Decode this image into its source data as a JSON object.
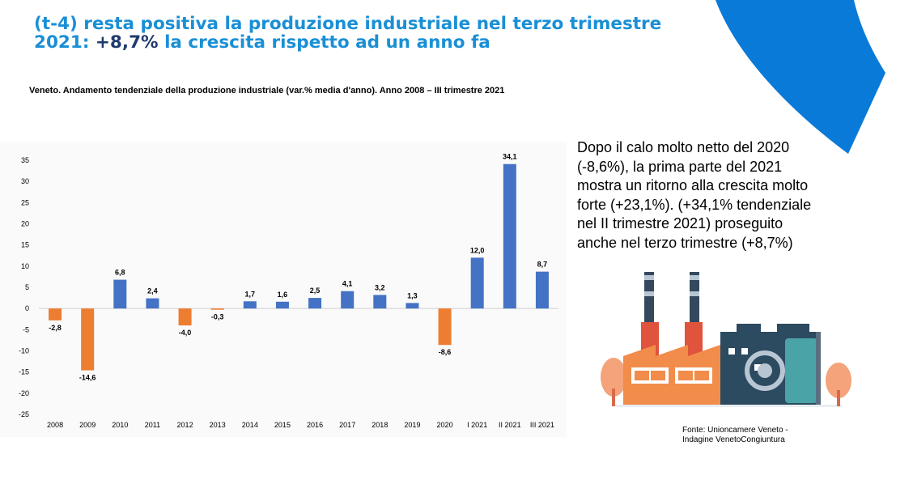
{
  "header": {
    "title_line1": "(t-4) resta positiva la produzione industriale nel terzo trimestre",
    "title_line2_prefix": "2021: ",
    "title_line2_highlight": "+8,7%",
    "title_line2_suffix": " la crescita rispetto ad un anno fa",
    "subtitle": "Veneto. Andamento tendenziale della produzione industriale (var.% media d'anno). Anno 2008 – III trimestre 2021"
  },
  "commentary": "Dopo il calo molto netto del 2020 (-8,6%), la prima parte del 2021 mostra un ritorno alla crescita molto forte (+23,1%). (+34,1% tendenziale nel II trimestre 2021) proseguito anche nel terzo trimestre (+8,7%)",
  "source": {
    "line1": "Fonte: Unioncamere Veneto -",
    "line2": "Indagine VenetoCongiuntura"
  },
  "colors": {
    "positive": "#4472c4",
    "negative": "#ed7d31",
    "title": "#1a8fd6",
    "highlight": "#1f3a6e",
    "arc": "#0a7ad8"
  },
  "chart_data": {
    "type": "bar",
    "categories": [
      "2008",
      "2009",
      "2010",
      "2011",
      "2012",
      "2013",
      "2014",
      "2015",
      "2016",
      "2017",
      "2018",
      "2019",
      "2020",
      "I 2021",
      "II 2021",
      "III 2021"
    ],
    "values": [
      -2.8,
      -14.6,
      6.8,
      2.4,
      -4.0,
      -0.3,
      1.7,
      1.6,
      2.5,
      4.1,
      3.2,
      1.3,
      -8.6,
      12.0,
      34.1,
      8.7
    ],
    "value_labels": [
      "-2,8",
      "-14,6",
      "6,8",
      "2,4",
      "-4,0",
      "-0,3",
      "1,7",
      "1,6",
      "2,5",
      "4,1",
      "3,2",
      "1,3",
      "-8,6",
      "12,0",
      "34,1",
      "8,7"
    ],
    "yticks": [
      35,
      30,
      25,
      20,
      15,
      10,
      5,
      0,
      -5,
      -10,
      -15,
      -20,
      -25
    ],
    "ylim": [
      -25,
      35
    ],
    "grid": false,
    "legend": "none"
  }
}
